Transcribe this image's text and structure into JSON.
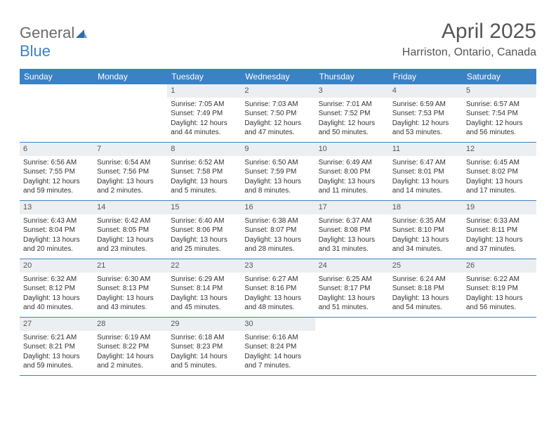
{
  "brand": {
    "part1": "General",
    "part2": "Blue"
  },
  "title": "April 2025",
  "location": "Harriston, Ontario, Canada",
  "colors": {
    "header_bg": "#3b82c4",
    "daynum_bg": "#eceff1",
    "border": "#3b82c4",
    "text": "#333333",
    "title_text": "#565656",
    "logo_gray": "#6b6b6b"
  },
  "weekdays": [
    "Sunday",
    "Monday",
    "Tuesday",
    "Wednesday",
    "Thursday",
    "Friday",
    "Saturday"
  ],
  "weeks": [
    [
      {
        "n": "",
        "sr": "",
        "ss": "",
        "dl": ""
      },
      {
        "n": "",
        "sr": "",
        "ss": "",
        "dl": ""
      },
      {
        "n": "1",
        "sr": "7:05 AM",
        "ss": "7:49 PM",
        "dl": "12 hours and 44 minutes."
      },
      {
        "n": "2",
        "sr": "7:03 AM",
        "ss": "7:50 PM",
        "dl": "12 hours and 47 minutes."
      },
      {
        "n": "3",
        "sr": "7:01 AM",
        "ss": "7:52 PM",
        "dl": "12 hours and 50 minutes."
      },
      {
        "n": "4",
        "sr": "6:59 AM",
        "ss": "7:53 PM",
        "dl": "12 hours and 53 minutes."
      },
      {
        "n": "5",
        "sr": "6:57 AM",
        "ss": "7:54 PM",
        "dl": "12 hours and 56 minutes."
      }
    ],
    [
      {
        "n": "6",
        "sr": "6:56 AM",
        "ss": "7:55 PM",
        "dl": "12 hours and 59 minutes."
      },
      {
        "n": "7",
        "sr": "6:54 AM",
        "ss": "7:56 PM",
        "dl": "13 hours and 2 minutes."
      },
      {
        "n": "8",
        "sr": "6:52 AM",
        "ss": "7:58 PM",
        "dl": "13 hours and 5 minutes."
      },
      {
        "n": "9",
        "sr": "6:50 AM",
        "ss": "7:59 PM",
        "dl": "13 hours and 8 minutes."
      },
      {
        "n": "10",
        "sr": "6:49 AM",
        "ss": "8:00 PM",
        "dl": "13 hours and 11 minutes."
      },
      {
        "n": "11",
        "sr": "6:47 AM",
        "ss": "8:01 PM",
        "dl": "13 hours and 14 minutes."
      },
      {
        "n": "12",
        "sr": "6:45 AM",
        "ss": "8:02 PM",
        "dl": "13 hours and 17 minutes."
      }
    ],
    [
      {
        "n": "13",
        "sr": "6:43 AM",
        "ss": "8:04 PM",
        "dl": "13 hours and 20 minutes."
      },
      {
        "n": "14",
        "sr": "6:42 AM",
        "ss": "8:05 PM",
        "dl": "13 hours and 23 minutes."
      },
      {
        "n": "15",
        "sr": "6:40 AM",
        "ss": "8:06 PM",
        "dl": "13 hours and 25 minutes."
      },
      {
        "n": "16",
        "sr": "6:38 AM",
        "ss": "8:07 PM",
        "dl": "13 hours and 28 minutes."
      },
      {
        "n": "17",
        "sr": "6:37 AM",
        "ss": "8:08 PM",
        "dl": "13 hours and 31 minutes."
      },
      {
        "n": "18",
        "sr": "6:35 AM",
        "ss": "8:10 PM",
        "dl": "13 hours and 34 minutes."
      },
      {
        "n": "19",
        "sr": "6:33 AM",
        "ss": "8:11 PM",
        "dl": "13 hours and 37 minutes."
      }
    ],
    [
      {
        "n": "20",
        "sr": "6:32 AM",
        "ss": "8:12 PM",
        "dl": "13 hours and 40 minutes."
      },
      {
        "n": "21",
        "sr": "6:30 AM",
        "ss": "8:13 PM",
        "dl": "13 hours and 43 minutes."
      },
      {
        "n": "22",
        "sr": "6:29 AM",
        "ss": "8:14 PM",
        "dl": "13 hours and 45 minutes."
      },
      {
        "n": "23",
        "sr": "6:27 AM",
        "ss": "8:16 PM",
        "dl": "13 hours and 48 minutes."
      },
      {
        "n": "24",
        "sr": "6:25 AM",
        "ss": "8:17 PM",
        "dl": "13 hours and 51 minutes."
      },
      {
        "n": "25",
        "sr": "6:24 AM",
        "ss": "8:18 PM",
        "dl": "13 hours and 54 minutes."
      },
      {
        "n": "26",
        "sr": "6:22 AM",
        "ss": "8:19 PM",
        "dl": "13 hours and 56 minutes."
      }
    ],
    [
      {
        "n": "27",
        "sr": "6:21 AM",
        "ss": "8:21 PM",
        "dl": "13 hours and 59 minutes."
      },
      {
        "n": "28",
        "sr": "6:19 AM",
        "ss": "8:22 PM",
        "dl": "14 hours and 2 minutes."
      },
      {
        "n": "29",
        "sr": "6:18 AM",
        "ss": "8:23 PM",
        "dl": "14 hours and 5 minutes."
      },
      {
        "n": "30",
        "sr": "6:16 AM",
        "ss": "8:24 PM",
        "dl": "14 hours and 7 minutes."
      },
      {
        "n": "",
        "sr": "",
        "ss": "",
        "dl": ""
      },
      {
        "n": "",
        "sr": "",
        "ss": "",
        "dl": ""
      },
      {
        "n": "",
        "sr": "",
        "ss": "",
        "dl": ""
      }
    ]
  ],
  "labels": {
    "sunrise": "Sunrise: ",
    "sunset": "Sunset: ",
    "daylight": "Daylight: "
  }
}
